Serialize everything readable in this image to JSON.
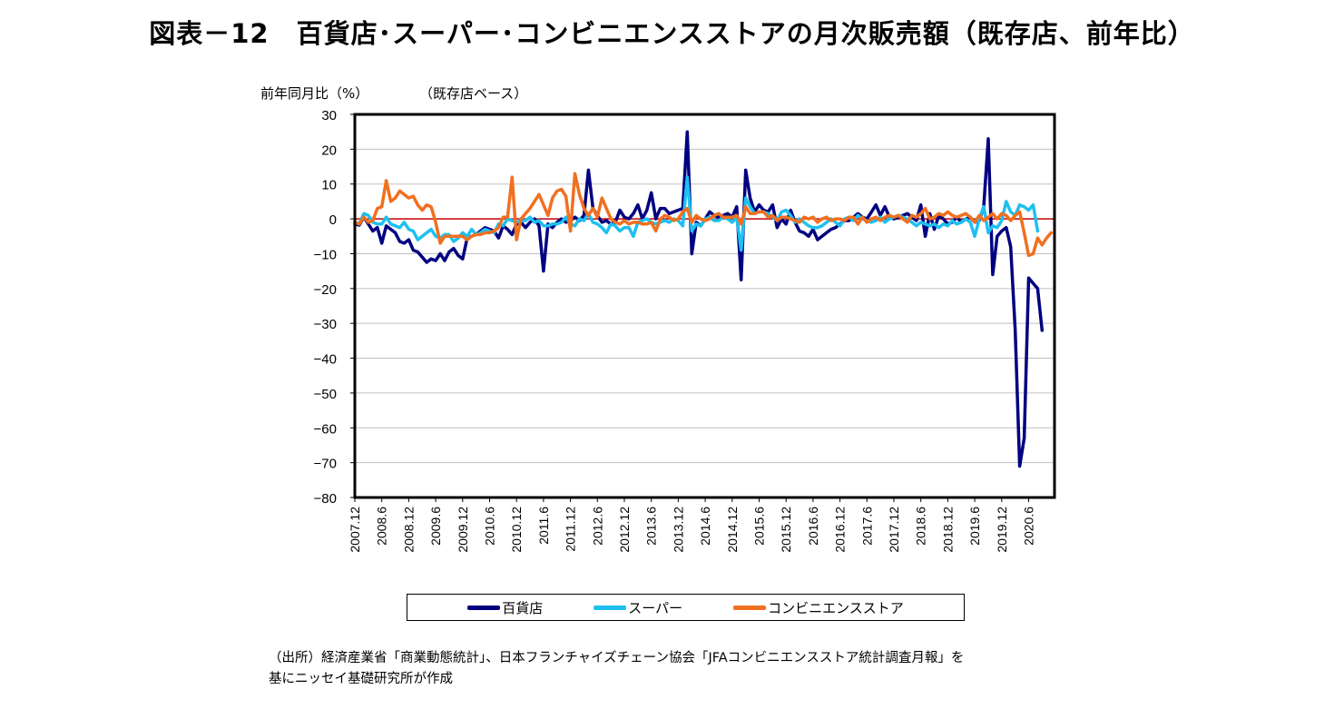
{
  "title": "図表－12　百貨店･スーパー･コンビニエンスストアの月次販売額（既存店、前年比）",
  "source": {
    "line1": "（出所）経済産業省「商業動態統計」、日本フランチャイズチェーン協会「JFAコンビニエンスストア統計調査月報」を",
    "line2": "基にニッセイ基礎研究所が作成"
  },
  "chart_data": {
    "type": "line",
    "title": "図表－12　百貨店･スーパー･コンビニエンスストアの月次販売額（既存店、前年比）",
    "subtitle": "（既存店ベース）",
    "ylabel": "前年同月比（%）",
    "xlabel": "",
    "ylim": [
      -80,
      30
    ],
    "yticks": [
      30,
      20,
      10,
      0,
      -10,
      -20,
      -30,
      -40,
      -50,
      -60,
      -70,
      -80
    ],
    "ytick_labels": [
      "30",
      "20",
      "10",
      "0",
      "−10",
      "−20",
      "−30",
      "−40",
      "−50",
      "−60",
      "−70",
      "−80"
    ],
    "x_start": "2007.12",
    "x_step": "1 month",
    "xtick_labels": [
      "2007.12",
      "2008.6",
      "2008.12",
      "2009.6",
      "2009.12",
      "2010.6",
      "2010.12",
      "2011.6",
      "2011.12",
      "2012.6",
      "2012.12",
      "2013.6",
      "2013.12",
      "2014.6",
      "2014.12",
      "2015.6",
      "2015.12",
      "2016.6",
      "2016.12",
      "2017.6",
      "2017.12",
      "2018.6",
      "2018.12",
      "2019.6",
      "2019.12",
      "2020.6"
    ],
    "grid": true,
    "legend": "bottom",
    "reference_line": 0,
    "colors": {
      "dept": "#000080",
      "super": "#1EC0F0",
      "cvs": "#F07020",
      "zero": "#C00000",
      "grid": "#C0C0C0"
    },
    "series": [
      {
        "name": "百貨店",
        "key": "dept",
        "values": [
          -1.5,
          -1.8,
          0.5,
          -1.5,
          -3.5,
          -2.5,
          -7.0,
          -2.0,
          -3.0,
          -4.0,
          -6.5,
          -7.0,
          -6.0,
          -9.0,
          -9.5,
          -11.0,
          -12.5,
          -11.5,
          -12.0,
          -10.0,
          -12.0,
          -9.5,
          -8.5,
          -10.5,
          -11.5,
          -5.5,
          -5.0,
          -4.5,
          -3.5,
          -2.5,
          -3.0,
          -3.5,
          -5.5,
          -2.0,
          -3.0,
          -4.5,
          -1.5,
          -1.0,
          -2.5,
          -1.0,
          0.0,
          -2.0,
          -15.0,
          -1.5,
          -2.5,
          -1.0,
          0.0,
          -1.0,
          -0.5,
          0.5,
          -0.5,
          1.0,
          14.0,
          3.0,
          1.0,
          -1.0,
          -0.5,
          -1.5,
          -1.0,
          2.5,
          0.5,
          0.0,
          1.5,
          4.0,
          0.0,
          2.5,
          7.5,
          0.0,
          3.0,
          3.0,
          1.5,
          2.0,
          2.5,
          3.0,
          25.0,
          -10.0,
          -1.0,
          -2.0,
          0.0,
          2.0,
          1.0,
          0.5,
          1.0,
          1.5,
          0.5,
          3.5,
          -17.5,
          14.0,
          6.0,
          2.0,
          4.0,
          2.5,
          2.0,
          4.0,
          -2.5,
          0.0,
          -1.5,
          2.5,
          -1.0,
          -3.5,
          -4.0,
          -5.0,
          -3.0,
          -6.0,
          -5.0,
          -4.0,
          -3.0,
          -2.5,
          -1.5,
          -0.5,
          -0.5,
          0.5,
          1.5,
          0.5,
          0.0,
          2.0,
          4.0,
          1.0,
          3.5,
          0.5,
          0.0,
          0.5,
          1.0,
          1.5,
          0.5,
          -0.5,
          4.0,
          -5.0,
          1.5,
          -3.0,
          1.0,
          0.0,
          -1.5,
          -1.0,
          0.5,
          -1.0,
          0.0,
          0.5,
          -1.0,
          -0.5,
          3.5,
          23.0,
          -16.0,
          -5.0,
          -3.5,
          -2.5,
          -8.0,
          -32.0,
          -71.0,
          -63.0,
          -17.0,
          -18.5,
          -20.0,
          -32.0
        ]
      },
      {
        "name": "スーパー",
        "key": "super",
        "values": [
          -1.0,
          -1.5,
          1.5,
          1.0,
          -1.0,
          -1.5,
          -1.5,
          0.5,
          -1.5,
          -2.0,
          -2.5,
          -1.0,
          -3.0,
          -3.5,
          -6.0,
          -5.0,
          -4.0,
          -3.0,
          -5.0,
          -5.5,
          -4.5,
          -4.5,
          -6.5,
          -5.5,
          -4.0,
          -5.0,
          -3.0,
          -4.5,
          -4.0,
          -3.0,
          -3.5,
          -4.0,
          -1.5,
          -2.0,
          0.0,
          -0.5,
          -1.0,
          -0.5,
          -0.5,
          0.5,
          -1.0,
          -0.5,
          -2.0,
          -2.0,
          -1.5,
          -1.5,
          -1.0,
          0.5,
          -1.5,
          -2.0,
          0.0,
          -0.5,
          1.5,
          -1.0,
          -1.5,
          -2.5,
          -4.0,
          -1.5,
          -2.0,
          -3.5,
          -2.5,
          -2.5,
          -5.0,
          -1.0,
          -0.5,
          0.0,
          -1.0,
          -1.5,
          -1.0,
          -0.5,
          -1.0,
          0.0,
          -0.5,
          -2.0,
          12.0,
          -3.5,
          -1.5,
          -2.0,
          0.0,
          0.5,
          -0.5,
          -0.5,
          0.5,
          0.0,
          -1.0,
          0.5,
          -9.0,
          6.0,
          3.5,
          1.5,
          2.0,
          2.0,
          1.5,
          0.5,
          -0.5,
          2.0,
          2.5,
          1.0,
          -1.0,
          0.0,
          -1.0,
          -2.0,
          -2.5,
          -2.5,
          -2.0,
          -1.0,
          0.0,
          -1.0,
          -2.0,
          0.0,
          0.5,
          -0.5,
          1.0,
          0.0,
          -0.5,
          -1.0,
          -0.5,
          0.5,
          -1.0,
          0.0,
          0.5,
          1.0,
          0.5,
          0.0,
          -1.0,
          -2.0,
          -1.0,
          -1.5,
          -2.0,
          -1.5,
          -2.5,
          -1.5,
          -2.0,
          -0.5,
          -1.5,
          -1.0,
          0.0,
          -1.0,
          -5.0,
          0.0,
          3.5,
          -4.0,
          -2.0,
          -2.5,
          -0.5,
          5.0,
          2.0,
          1.0,
          4.0,
          3.5,
          2.5,
          4.0,
          -3.5
        ]
      },
      {
        "name": "コンビニエンスストア",
        "key": "cvs",
        "values": [
          -1.0,
          -1.5,
          0.5,
          -1.0,
          -0.5,
          3.0,
          3.5,
          11.0,
          5.0,
          6.0,
          8.0,
          7.0,
          6.0,
          6.5,
          4.0,
          2.5,
          4.0,
          3.5,
          -1.0,
          -7.0,
          -5.0,
          -5.0,
          -5.0,
          -5.0,
          -5.0,
          -6.0,
          -5.0,
          -4.5,
          -4.5,
          -4.0,
          -4.0,
          -3.5,
          -2.5,
          0.5,
          0.5,
          12.0,
          -6.0,
          0.0,
          1.5,
          3.0,
          5.0,
          7.0,
          4.0,
          1.0,
          6.0,
          8.0,
          8.5,
          6.5,
          -3.5,
          13.0,
          7.0,
          3.0,
          1.0,
          3.0,
          0.5,
          6.0,
          3.0,
          0.0,
          -1.0,
          -1.5,
          -0.5,
          -1.5,
          -1.0,
          -1.0,
          -1.5,
          -1.5,
          -1.0,
          -3.5,
          0.0,
          1.0,
          0.5,
          -0.5,
          0.0,
          2.0,
          3.0,
          -1.0,
          1.0,
          0.0,
          -0.5,
          0.0,
          1.0,
          1.5,
          0.5,
          0.5,
          0.5,
          1.0,
          -1.5,
          3.5,
          1.5,
          1.5,
          2.0,
          2.0,
          0.5,
          1.0,
          -0.5,
          0.5,
          0.5,
          0.0,
          -0.5,
          -1.0,
          0.5,
          0.0,
          0.5,
          -1.0,
          0.0,
          0.5,
          -0.5,
          0.0,
          0.0,
          -0.5,
          0.5,
          0.5,
          -1.5,
          0.5,
          -1.0,
          0.0,
          0.5,
          -0.5,
          0.5,
          1.0,
          0.5,
          1.0,
          0.0,
          -1.0,
          1.0,
          0.5,
          1.5,
          3.0,
          0.0,
          0.5,
          1.5,
          1.0,
          2.0,
          1.0,
          0.5,
          1.0,
          1.5,
          0.5,
          -1.0,
          1.0,
          -0.5,
          0.5,
          1.5,
          0.0,
          1.5,
          1.0,
          -0.5,
          1.0,
          2.0,
          -4.0,
          -10.5,
          -10.0,
          -5.5,
          -7.5,
          -5.5,
          -4.0
        ]
      }
    ]
  }
}
